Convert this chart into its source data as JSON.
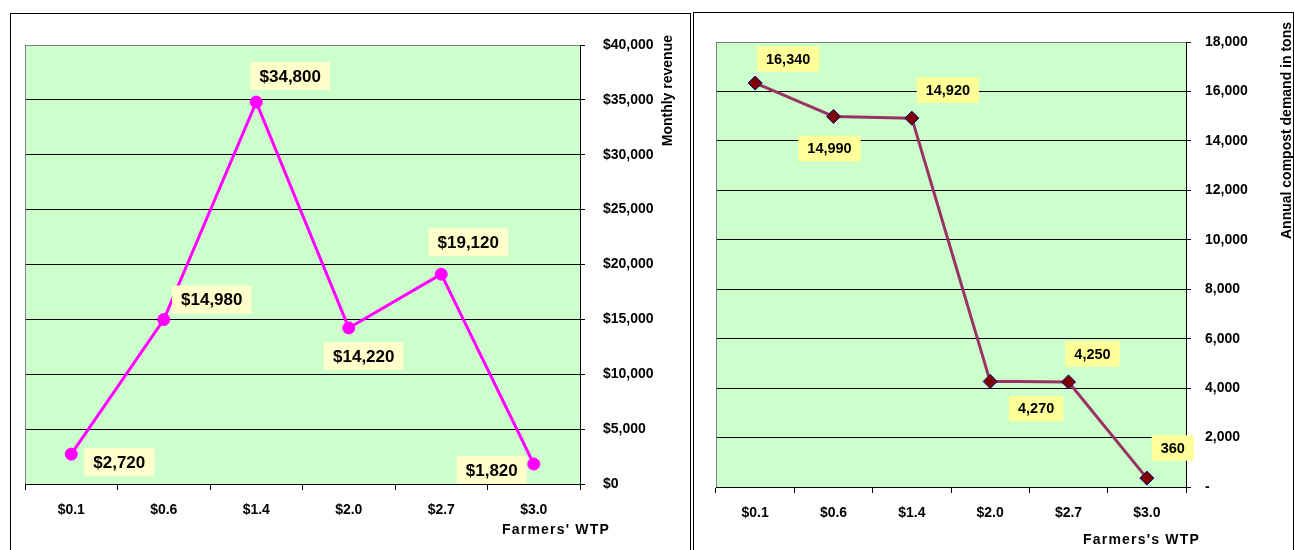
{
  "chart_data": [
    {
      "type": "line",
      "xlabel": "Farmers' WTP",
      "ylabel": "Monthly revenue",
      "categories": [
        "$0.1",
        "$0.6",
        "$1.4",
        "$2.0",
        "$2.7",
        "$3.0"
      ],
      "series": [
        {
          "color": "#ff00ff",
          "values": [
            2720,
            14980,
            34800,
            14220,
            19120,
            1820
          ],
          "value_labels": [
            "$2,720",
            "$14,980",
            "$34,800",
            "$14,220",
            "$19,120",
            "$1,820"
          ]
        }
      ],
      "ylim": [
        0,
        40000
      ],
      "yticks": [
        {
          "value": 0,
          "label": "$0"
        },
        {
          "value": 5000,
          "label": "$5,000"
        },
        {
          "value": 10000,
          "label": "$10,000"
        },
        {
          "value": 15000,
          "label": "$15,000"
        },
        {
          "value": 20000,
          "label": "$20,000"
        },
        {
          "value": 25000,
          "label": "$25,000"
        },
        {
          "value": 30000,
          "label": "$30,000"
        },
        {
          "value": 35000,
          "label": "$35,000"
        },
        {
          "value": 40000,
          "label": "$40,000"
        }
      ],
      "grid": "y",
      "marker": "circle"
    },
    {
      "type": "line",
      "xlabel": "Farmers's WTP",
      "ylabel": "Annual compost demand in tons",
      "categories": [
        "$0.1",
        "$0.6",
        "$1.4",
        "$2.0",
        "$2.7",
        "$3.0"
      ],
      "series": [
        {
          "color": "#993366",
          "values": [
            16340,
            14990,
            14920,
            4270,
            4250,
            360
          ],
          "value_labels": [
            "16,340",
            "14,990",
            "14,920",
            "4,270",
            "4,250",
            "360"
          ]
        }
      ],
      "ylim": [
        0,
        18000
      ],
      "yticks": [
        {
          "value": 0,
          "label": "-"
        },
        {
          "value": 2000,
          "label": "2,000"
        },
        {
          "value": 4000,
          "label": "4,000"
        },
        {
          "value": 6000,
          "label": "6,000"
        },
        {
          "value": 8000,
          "label": "8,000"
        },
        {
          "value": 10000,
          "label": "10,000"
        },
        {
          "value": 12000,
          "label": "12,000"
        },
        {
          "value": 14000,
          "label": "14,000"
        },
        {
          "value": 16000,
          "label": "16,000"
        },
        {
          "value": 18000,
          "label": "18,000"
        }
      ],
      "grid": "y",
      "marker": "diamond"
    }
  ]
}
